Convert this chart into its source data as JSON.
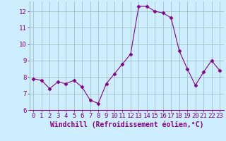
{
  "x": [
    0,
    1,
    2,
    3,
    4,
    5,
    6,
    7,
    8,
    9,
    10,
    11,
    12,
    13,
    14,
    15,
    16,
    17,
    18,
    19,
    20,
    21,
    22,
    23
  ],
  "y": [
    7.9,
    7.8,
    7.3,
    7.7,
    7.6,
    7.8,
    7.4,
    6.6,
    6.4,
    7.6,
    8.2,
    8.8,
    9.4,
    12.3,
    12.3,
    12.0,
    11.9,
    11.6,
    9.6,
    8.5,
    7.5,
    8.3,
    9.0,
    8.4
  ],
  "line_color": "#880088",
  "marker": "D",
  "marker_size": 2.5,
  "bg_color": "#cceeff",
  "grid_color": "#99bbbb",
  "xlabel": "Windchill (Refroidissement éolien,°C)",
  "ylim": [
    6,
    12.6
  ],
  "xlim": [
    -0.5,
    23.5
  ],
  "yticks": [
    6,
    7,
    8,
    9,
    10,
    11,
    12
  ],
  "xticks": [
    0,
    1,
    2,
    3,
    4,
    5,
    6,
    7,
    8,
    9,
    10,
    11,
    12,
    13,
    14,
    15,
    16,
    17,
    18,
    19,
    20,
    21,
    22,
    23
  ],
  "tick_color": "#880088",
  "label_color": "#880088",
  "tick_fontsize": 6.5,
  "xlabel_fontsize": 7.0
}
